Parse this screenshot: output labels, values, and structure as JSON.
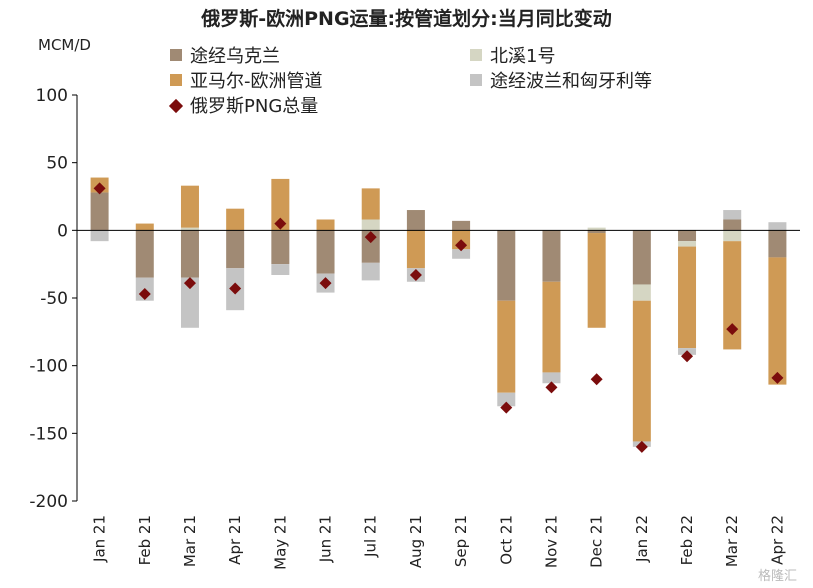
{
  "title": "俄罗斯-欧洲PNG运量:按管道划分:当月同比变动",
  "unit": "MCM/D",
  "watermark": "格隆汇",
  "chart_data": {
    "type": "bar",
    "stacked": true,
    "categories": [
      "Jan 21",
      "Feb 21",
      "Mar 21",
      "Apr 21",
      "May 21",
      "Jun 21",
      "Jul 21",
      "Aug 21",
      "Sep 21",
      "Oct 21",
      "Nov 21",
      "Dec 21",
      "Jan 22",
      "Feb 22",
      "Mar 22",
      "Apr 22"
    ],
    "ylim": [
      -200,
      100
    ],
    "yticks": [
      100,
      50,
      0,
      -50,
      -100,
      -150,
      -200
    ],
    "legend_position": "top",
    "series": [
      {
        "name": "途经乌克兰",
        "kind": "bar",
        "color": "#a08a74",
        "values": [
          28,
          -35,
          -35,
          -28,
          -25,
          -32,
          -24,
          15,
          7,
          -52,
          -38,
          -2,
          -40,
          -8,
          8,
          -20
        ]
      },
      {
        "name": "北溪1号",
        "kind": "bar",
        "color": "#d5d6c3",
        "values": [
          0,
          0,
          2,
          0,
          0,
          0,
          8,
          0,
          0,
          0,
          0,
          2,
          -12,
          -4,
          -8,
          0
        ]
      },
      {
        "name": "亚马尔-欧洲管道",
        "kind": "bar",
        "color": "#cf9a55",
        "values": [
          11,
          5,
          31,
          16,
          38,
          8,
          23,
          -28,
          -14,
          -68,
          -67,
          -70,
          -104,
          -75,
          -80,
          -94
        ]
      },
      {
        "name": "途经波兰和匈牙利等",
        "kind": "bar",
        "color": "#c4c4c4",
        "values": [
          -8,
          -17,
          -37,
          -31,
          -8,
          -14,
          -13,
          -10,
          -7,
          -10,
          -8,
          0,
          -4,
          -5,
          7,
          6
        ]
      },
      {
        "name": "俄罗斯PNG总量",
        "kind": "marker",
        "color": "#7b0c0c",
        "values": [
          31,
          -47,
          -39,
          -43,
          5,
          -39,
          -5,
          -33,
          -11,
          -131,
          -116,
          -110,
          -160,
          -93,
          -73,
          -109
        ]
      }
    ]
  }
}
